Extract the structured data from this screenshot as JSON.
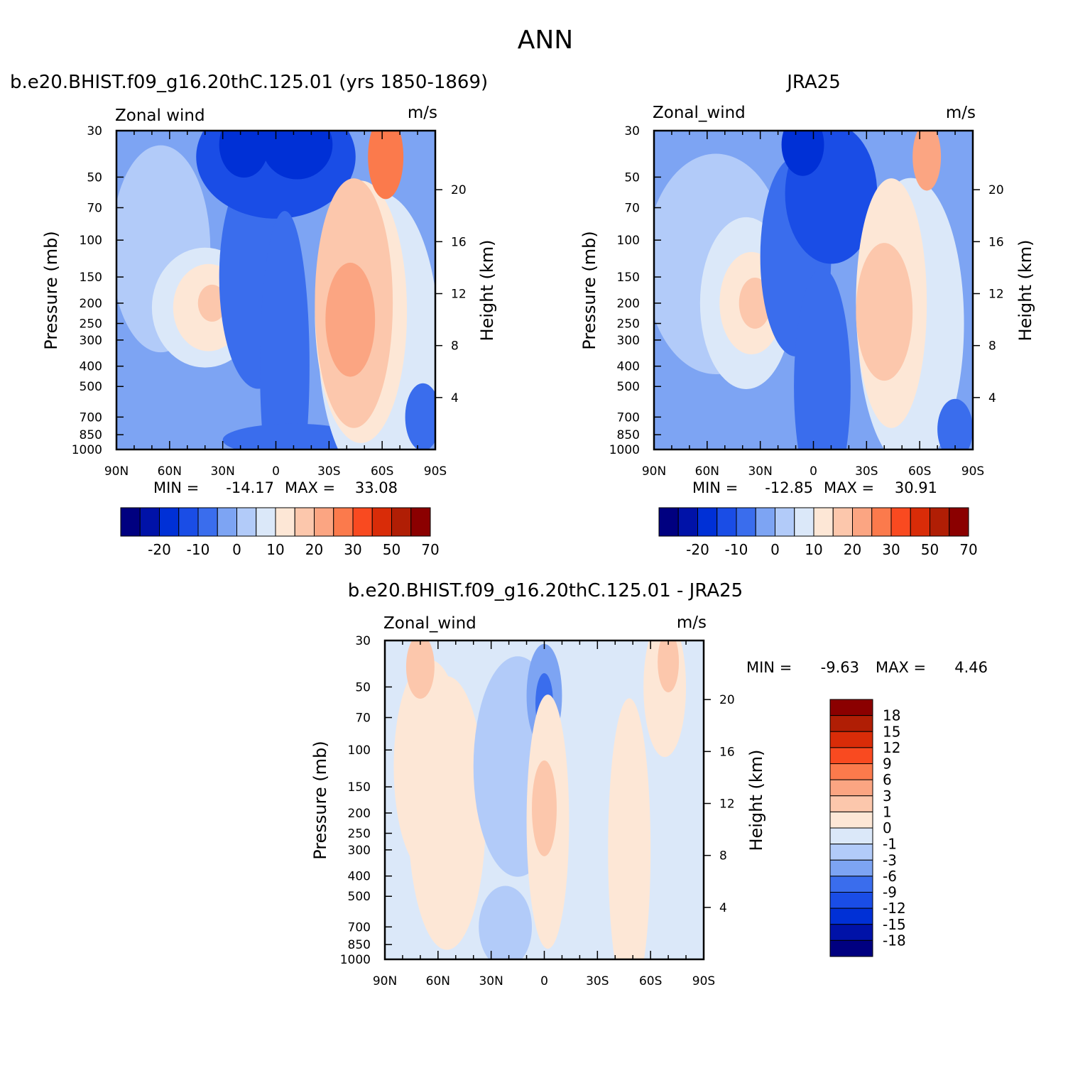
{
  "figure": {
    "title": "ANN"
  },
  "colors": {
    "contour_levels": [
      "#000080",
      "#0012a8",
      "#0030d6",
      "#1a4de6",
      "#3a6ded",
      "#7da4f3",
      "#b2cbf9",
      "#dbe8f9",
      "#fde7d6",
      "#fcc7ac",
      "#fba582",
      "#fb7a4c",
      "#f94a20",
      "#d92c08",
      "#b01e05",
      "#8b0000"
    ]
  },
  "chart_data": [
    {
      "type": "contour",
      "title": "b.e20.BHIST.f09_g16.20thC.125.01 (yrs 1850-1869)",
      "variable": "Zonal wind",
      "units": "m/s",
      "ylabel": "Pressure (mb)",
      "y2label": "Height (km)",
      "x_ticks": [
        "90N",
        "60N",
        "30N",
        "0",
        "30S",
        "60S",
        "90S"
      ],
      "y_ticks": [
        "30",
        "50",
        "70",
        "100",
        "150",
        "200",
        "250",
        "300",
        "400",
        "500",
        "700",
        "850",
        "1000"
      ],
      "y2_ticks": [
        "20",
        "16",
        "12",
        "8",
        "4"
      ],
      "min_label": "MIN =",
      "min": "-14.17",
      "max_label": "MAX =",
      "max": "33.08",
      "colorbar_labels": [
        "-20",
        "-10",
        "0",
        "10",
        "20",
        "30",
        "50",
        "70"
      ]
    },
    {
      "type": "contour",
      "title": "JRA25",
      "variable": "Zonal_wind",
      "units": "m/s",
      "ylabel": "Pressure (mb)",
      "y2label": "Height (km)",
      "x_ticks": [
        "90N",
        "60N",
        "30N",
        "0",
        "30S",
        "60S",
        "90S"
      ],
      "y_ticks": [
        "30",
        "50",
        "70",
        "100",
        "150",
        "200",
        "250",
        "300",
        "400",
        "500",
        "700",
        "850",
        "1000"
      ],
      "y2_ticks": [
        "20",
        "16",
        "12",
        "8",
        "4"
      ],
      "min_label": "MIN =",
      "min": "-12.85",
      "max_label": "MAX =",
      "max": "30.91",
      "colorbar_labels": [
        "-20",
        "-10",
        "0",
        "10",
        "20",
        "30",
        "50",
        "70"
      ]
    },
    {
      "type": "contour",
      "title": "b.e20.BHIST.f09_g16.20thC.125.01 - JRA25",
      "variable": "Zonal_wind",
      "units": "m/s",
      "ylabel": "Pressure (mb)",
      "y2label": "Height (km)",
      "x_ticks": [
        "90N",
        "60N",
        "30N",
        "0",
        "30S",
        "60S",
        "90S"
      ],
      "y_ticks": [
        "30",
        "50",
        "70",
        "100",
        "150",
        "200",
        "250",
        "300",
        "400",
        "500",
        "700",
        "850",
        "1000"
      ],
      "y2_ticks": [
        "20",
        "16",
        "12",
        "8",
        "4"
      ],
      "min_label": "MIN =",
      "min": "-9.63",
      "max_label": "MAX =",
      "max": "4.46",
      "colorbar_labels": [
        "18",
        "15",
        "12",
        "9",
        "6",
        "3",
        "1",
        "0",
        "-1",
        "-3",
        "-6",
        "-9",
        "-12",
        "-15",
        "-18"
      ]
    }
  ]
}
